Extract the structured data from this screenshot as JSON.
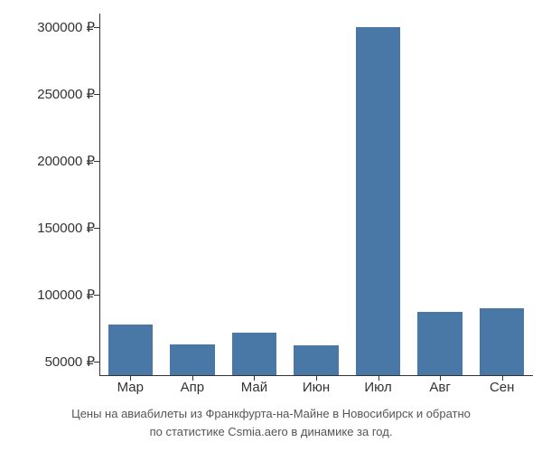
{
  "chart": {
    "type": "bar",
    "categories": [
      "Мар",
      "Апр",
      "Май",
      "Июн",
      "Июл",
      "Авг",
      "Сен"
    ],
    "values": [
      78000,
      63000,
      72000,
      62000,
      300000,
      87000,
      90000
    ],
    "bar_color": "#4a78a6",
    "background_color": "#ffffff",
    "axis_color": "#333333",
    "label_color": "#333333",
    "caption_color": "#555555",
    "y_ticks": [
      50000,
      100000,
      150000,
      200000,
      250000,
      300000
    ],
    "y_tick_labels": [
      "50000 ₽",
      "100000 ₽",
      "150000 ₽",
      "200000 ₽",
      "250000 ₽",
      "300000 ₽"
    ],
    "y_min": 40000,
    "y_max": 310000,
    "label_fontsize": 15,
    "caption_fontsize": 13,
    "bar_width_ratio": 0.72,
    "caption_line1": "Цены на авиабилеты из Франкфурта-на-Майне в Новосибирск и обратно",
    "caption_line2": "по статистике Csmia.aero в динамике за год."
  }
}
